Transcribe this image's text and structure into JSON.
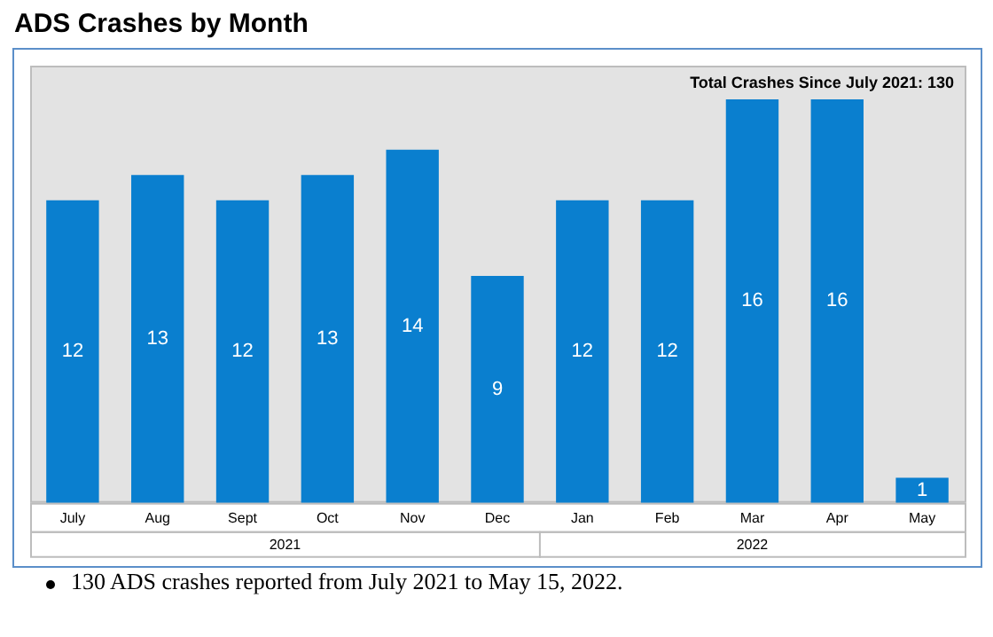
{
  "chart_data": {
    "type": "bar",
    "title": "ADS Crashes by Month",
    "categories": [
      "July",
      "Aug",
      "Sept",
      "Oct",
      "Nov",
      "Dec",
      "Jan",
      "Feb",
      "Mar",
      "Apr",
      "May"
    ],
    "values": [
      12,
      13,
      12,
      13,
      14,
      9,
      12,
      12,
      16,
      16,
      1
    ],
    "color": "#0a7fcf",
    "ylim": [
      0,
      16
    ],
    "grid": false,
    "legend": false,
    "data_labels": true,
    "tick_labels": "x",
    "annotations": [
      "Total Crashes Since July 2021: 130",
      "2021",
      "2022",
      "130 ADS crashes reported from July 2021 to May 15, 2022."
    ]
  }
}
